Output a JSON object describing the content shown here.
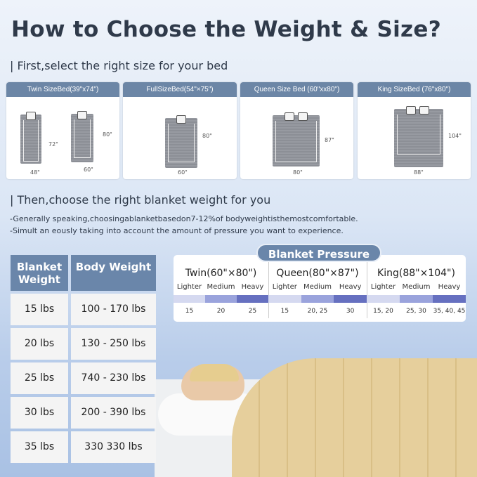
{
  "title": "How to Choose the Weight & Size?",
  "step1": "| First,select the right size for your bed",
  "sizes": [
    {
      "label": "Twin SizeBed(39\"x74\")",
      "dims": [
        "72\"",
        "48\"",
        "80\"",
        "60\""
      ]
    },
    {
      "label": "FullSizeBed(54\"×75\")",
      "dims": [
        "80\"",
        "60\""
      ]
    },
    {
      "label": "Queen Size Bed  (60\"xx80\")",
      "dims": [
        "87\"",
        "80\""
      ]
    },
    {
      "label": "King SizeBed (76\"x80\")",
      "dims": [
        "104\"",
        "88\""
      ]
    }
  ],
  "step2": "| Then,choose the right blanket weight for you",
  "notes": [
    "-Generally speaking,choosingablanketbasedon7-12%of bodyweightisthemostcomfortable.",
    "-Simult an eousIy taking into account the amount of pressure you want to experience."
  ],
  "weight_table": {
    "headers": [
      "Blanket Weight",
      "Body Weight"
    ],
    "rows": [
      [
        "15 lbs",
        "100 - 170 lbs"
      ],
      [
        "20 lbs",
        "130 - 250 lbs"
      ],
      [
        "25 lbs",
        "740 - 230 lbs"
      ],
      [
        "30 lbs",
        "200 - 390 lbs"
      ],
      [
        "35 lbs",
        "330  330 lbs"
      ]
    ]
  },
  "pressure": {
    "title": "Blanket Pressure",
    "levels": [
      "Lighter",
      "Medium",
      "Heavy"
    ],
    "colors": [
      "#d5d9f0",
      "#9aa3dc",
      "#6670c0"
    ],
    "groups": [
      {
        "name": "Twin(60\"×80\")",
        "values": [
          "15",
          "20",
          "25"
        ]
      },
      {
        "name": "Queen(80\"×87\")",
        "values": [
          "15",
          "20, 25",
          "30"
        ]
      },
      {
        "name": "King(88\"×104\")",
        "values": [
          "15, 20",
          "25, 30",
          "35, 40, 45"
        ]
      }
    ]
  }
}
